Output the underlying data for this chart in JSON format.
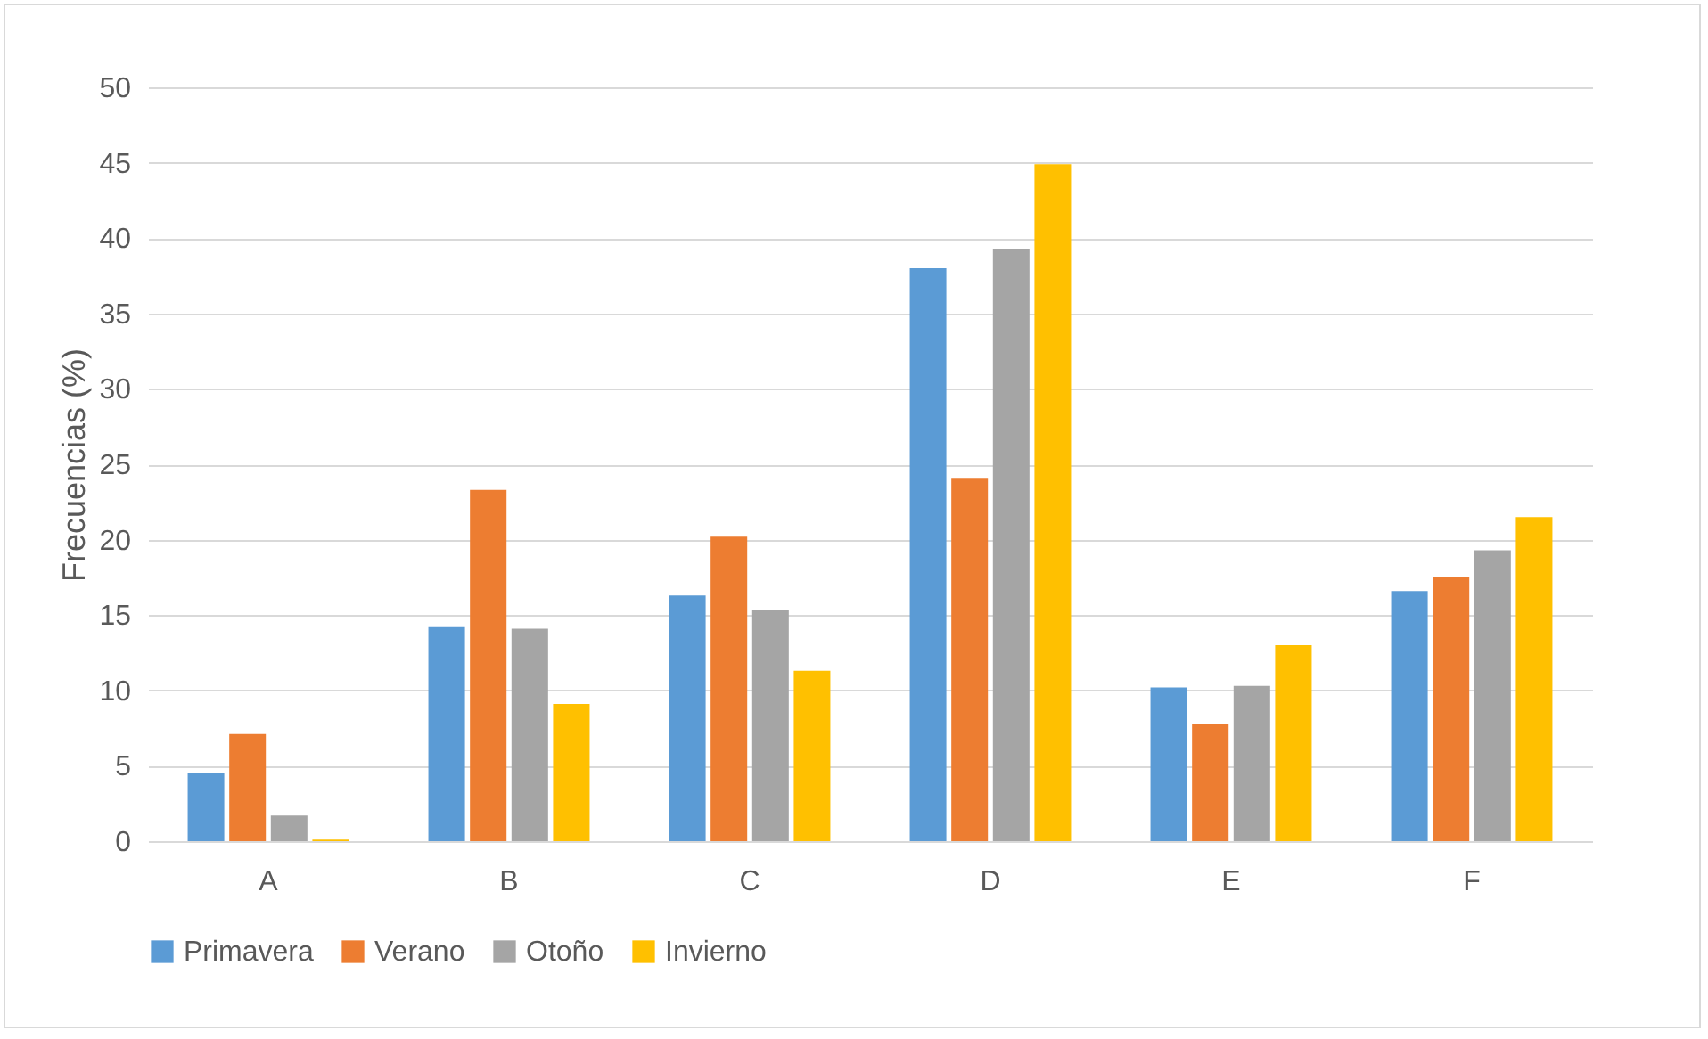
{
  "chart_data": {
    "type": "bar",
    "ylabel": "Frecuencias (%)",
    "categories": [
      "A",
      "B",
      "C",
      "D",
      "E",
      "F"
    ],
    "series": [
      {
        "name": "Primavera",
        "color": "#5b9bd5",
        "values": [
          4.5,
          14.2,
          16.3,
          38.0,
          10.2,
          16.6
        ]
      },
      {
        "name": "Verano",
        "color": "#ed7d31",
        "values": [
          7.1,
          23.3,
          20.2,
          24.1,
          7.8,
          17.5
        ]
      },
      {
        "name": "Otoño",
        "color": "#a5a5a5",
        "values": [
          1.7,
          14.1,
          15.3,
          39.3,
          10.3,
          19.3
        ]
      },
      {
        "name": "Invierno",
        "color": "#ffc000",
        "values": [
          0.1,
          9.1,
          11.3,
          44.9,
          13.0,
          21.5
        ]
      }
    ],
    "ylim": [
      0,
      50
    ],
    "yticks": [
      0,
      5,
      10,
      15,
      20,
      25,
      30,
      35,
      40,
      45,
      50
    ],
    "grid": "y",
    "legend": "bottom"
  }
}
